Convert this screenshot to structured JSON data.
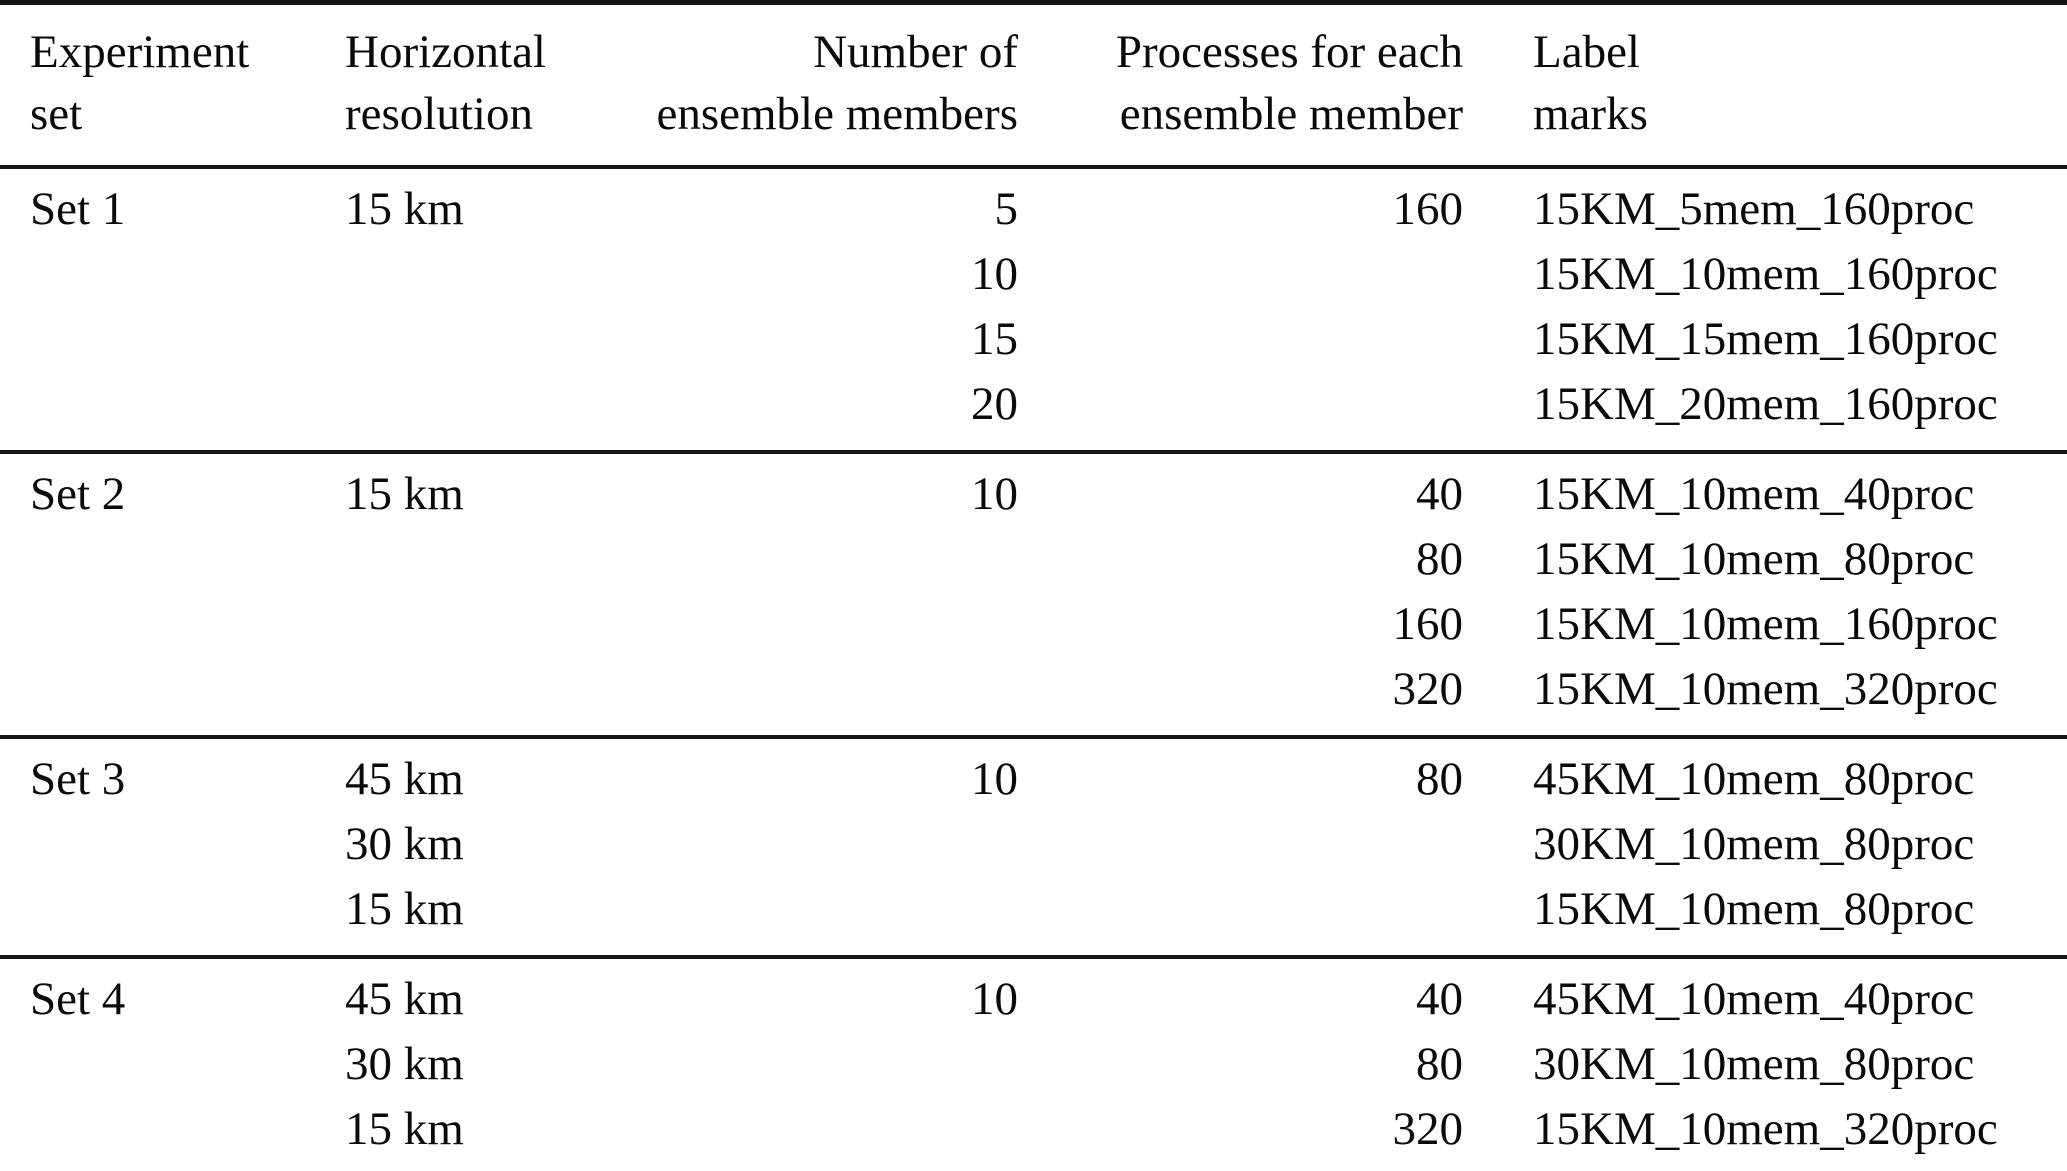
{
  "table": {
    "colors": {
      "text": "#0a0a0a",
      "rule": "#161616",
      "background": "#ffffff"
    },
    "columns": [
      {
        "id": "experiment-set",
        "align": "left",
        "lines": [
          "Experiment",
          "set"
        ]
      },
      {
        "id": "horizontal-resolution",
        "align": "left",
        "lines": [
          "Horizontal",
          "resolution"
        ]
      },
      {
        "id": "ensemble-members",
        "align": "right",
        "lines": [
          "Number of",
          "ensemble members"
        ]
      },
      {
        "id": "processes",
        "align": "right",
        "lines": [
          "Processes for each",
          "ensemble member"
        ]
      },
      {
        "id": "label-marks",
        "align": "left",
        "lines": [
          "Label",
          "marks"
        ]
      }
    ],
    "sets": [
      {
        "name": "Set 1",
        "rows": [
          [
            "Set 1",
            "15 km",
            "5",
            "160",
            "15KM_5mem_160proc"
          ],
          [
            "",
            "",
            "10",
            "",
            "15KM_10mem_160proc"
          ],
          [
            "",
            "",
            "15",
            "",
            "15KM_15mem_160proc"
          ],
          [
            "",
            "",
            "20",
            "",
            "15KM_20mem_160proc"
          ]
        ]
      },
      {
        "name": "Set 2",
        "rows": [
          [
            "Set 2",
            "15 km",
            "10",
            "40",
            "15KM_10mem_40proc"
          ],
          [
            "",
            "",
            "",
            "80",
            "15KM_10mem_80proc"
          ],
          [
            "",
            "",
            "",
            "160",
            "15KM_10mem_160proc"
          ],
          [
            "",
            "",
            "",
            "320",
            "15KM_10mem_320proc"
          ]
        ]
      },
      {
        "name": "Set 3",
        "rows": [
          [
            "Set 3",
            "45 km",
            "10",
            "80",
            "45KM_10mem_80proc"
          ],
          [
            "",
            "30 km",
            "",
            "",
            "30KM_10mem_80proc"
          ],
          [
            "",
            "15 km",
            "",
            "",
            "15KM_10mem_80proc"
          ]
        ]
      },
      {
        "name": "Set 4",
        "rows": [
          [
            "Set 4",
            "45 km",
            "10",
            "40",
            "45KM_10mem_40proc"
          ],
          [
            "",
            "30 km",
            "",
            "80",
            "30KM_10mem_80proc"
          ],
          [
            "",
            "15 km",
            "",
            "320",
            "15KM_10mem_320proc"
          ]
        ]
      }
    ]
  }
}
